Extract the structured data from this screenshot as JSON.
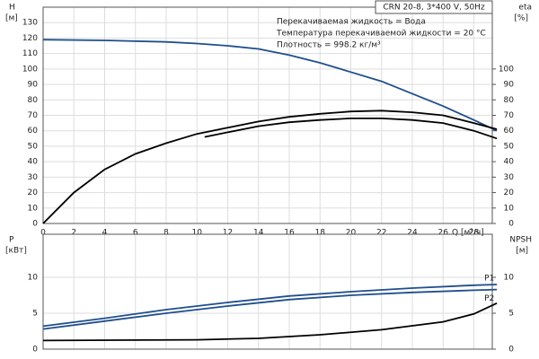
{
  "chart_data": [
    {
      "type": "line",
      "title": "CRN 20-8, 3*400 V, 50Hz",
      "annotations": [
        "Перекачиваемая жидкость = Вода",
        "Температура перекачиваемой жидкости = 20 °C",
        "Плотность = 998.2 кг/м³"
      ],
      "x_label": "Q [м³/ч]",
      "y_label": "H",
      "y_unit": "[м]",
      "y2_label": "eta",
      "y2_unit": "[%]",
      "xlim": [
        0,
        29.2
      ],
      "xticks": [
        0,
        2,
        4,
        6,
        8,
        10,
        12,
        14,
        16,
        18,
        20,
        22,
        24,
        26,
        28
      ],
      "ylim": [
        0,
        140
      ],
      "yticks": [
        0,
        10,
        20,
        30,
        40,
        50,
        60,
        70,
        80,
        90,
        100,
        110,
        120,
        130
      ],
      "y2lim": [
        0,
        140
      ],
      "y2ticks": [
        0,
        10,
        20,
        30,
        40,
        50,
        60,
        70,
        80,
        90,
        100
      ],
      "grid": true,
      "series": [
        {
          "color": "#1f4e8c",
          "x": [
            0,
            4,
            8,
            10,
            12,
            14,
            16,
            18,
            20,
            22,
            24,
            26,
            28,
            29.5
          ],
          "values": [
            119,
            118.5,
            117.5,
            116.5,
            115,
            113,
            109,
            104,
            98,
            92,
            84,
            76,
            67,
            60
          ]
        },
        {
          "color": "#000000",
          "axis": "y2",
          "x": [
            0,
            2,
            4,
            6,
            8,
            10,
            12,
            14,
            16,
            18,
            20,
            22,
            24,
            26,
            28,
            29.5
          ],
          "values": [
            0,
            20,
            35,
            45,
            52,
            58,
            62,
            66,
            69,
            71,
            72.5,
            73,
            72,
            70,
            65,
            61
          ]
        },
        {
          "color": "#000000",
          "axis": "y2",
          "x": [
            10.5,
            12,
            14,
            16,
            18,
            20,
            22,
            24,
            26,
            28,
            29.5
          ],
          "values": [
            56,
            59,
            63,
            65.5,
            67,
            68,
            68,
            67,
            65,
            60,
            55
          ]
        }
      ]
    },
    {
      "type": "line",
      "y_label": "P",
      "y_unit": "[кВт]",
      "y2_label": "NPSH",
      "y2_unit": "[м]",
      "xlim": [
        0,
        29.2
      ],
      "ylim": [
        0,
        16
      ],
      "yticks": [
        0,
        5,
        10
      ],
      "y2lim": [
        0,
        16
      ],
      "y2ticks": [
        0,
        5,
        10
      ],
      "grid": true,
      "series": [
        {
          "name": "P1",
          "color": "#1f4e8c",
          "x": [
            0,
            4,
            8,
            12,
            16,
            20,
            24,
            28,
            29.5
          ],
          "values": [
            3.2,
            4.3,
            5.5,
            6.5,
            7.4,
            8.0,
            8.5,
            8.9,
            9.0
          ]
        },
        {
          "name": "P2",
          "color": "#1f4e8c",
          "x": [
            0,
            4,
            8,
            12,
            16,
            20,
            24,
            28,
            29.5
          ],
          "values": [
            2.8,
            3.9,
            5.0,
            6.0,
            6.9,
            7.5,
            7.9,
            8.2,
            8.3
          ]
        },
        {
          "color": "#000000",
          "axis": "y2",
          "x": [
            0,
            10,
            14,
            18,
            22,
            26,
            28,
            29.5
          ],
          "values": [
            1.2,
            1.3,
            1.5,
            2.0,
            2.7,
            3.8,
            4.9,
            6.4
          ]
        }
      ]
    }
  ]
}
